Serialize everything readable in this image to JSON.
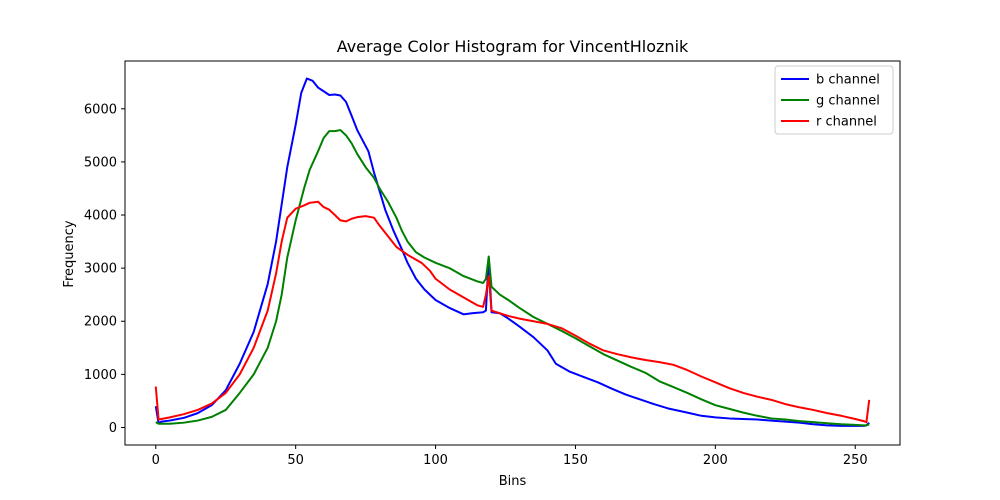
{
  "chart_data": {
    "type": "line",
    "title": "Average Color Histogram for VincentHloznik",
    "xlabel": "Bins",
    "ylabel": "Frequency",
    "xlim": [
      -11,
      266
    ],
    "ylim": [
      -330,
      6900
    ],
    "xticks": [
      0,
      50,
      100,
      150,
      200,
      250
    ],
    "yticks": [
      0,
      1000,
      2000,
      3000,
      4000,
      5000,
      6000
    ],
    "legend_position": "top-right",
    "series": [
      {
        "name": "b channel",
        "color": "#0000ff",
        "points": [
          [
            0,
            400
          ],
          [
            1,
            80
          ],
          [
            2,
            110
          ],
          [
            5,
            130
          ],
          [
            10,
            180
          ],
          [
            15,
            270
          ],
          [
            20,
            420
          ],
          [
            25,
            700
          ],
          [
            30,
            1200
          ],
          [
            35,
            1800
          ],
          [
            40,
            2700
          ],
          [
            43,
            3500
          ],
          [
            45,
            4200
          ],
          [
            47,
            4900
          ],
          [
            50,
            5700
          ],
          [
            52,
            6300
          ],
          [
            54,
            6570
          ],
          [
            56,
            6530
          ],
          [
            58,
            6400
          ],
          [
            60,
            6330
          ],
          [
            62,
            6260
          ],
          [
            64,
            6270
          ],
          [
            66,
            6250
          ],
          [
            68,
            6130
          ],
          [
            70,
            5870
          ],
          [
            72,
            5600
          ],
          [
            74,
            5400
          ],
          [
            76,
            5200
          ],
          [
            78,
            4800
          ],
          [
            80,
            4450
          ],
          [
            82,
            4100
          ],
          [
            85,
            3700
          ],
          [
            88,
            3350
          ],
          [
            90,
            3100
          ],
          [
            93,
            2800
          ],
          [
            96,
            2600
          ],
          [
            100,
            2400
          ],
          [
            105,
            2250
          ],
          [
            110,
            2130
          ],
          [
            113,
            2150
          ],
          [
            117,
            2170
          ],
          [
            118,
            2200
          ],
          [
            119,
            3200
          ],
          [
            120,
            2170
          ],
          [
            123,
            2150
          ],
          [
            126,
            2050
          ],
          [
            130,
            1900
          ],
          [
            135,
            1700
          ],
          [
            140,
            1450
          ],
          [
            143,
            1200
          ],
          [
            148,
            1050
          ],
          [
            153,
            950
          ],
          [
            158,
            850
          ],
          [
            163,
            730
          ],
          [
            168,
            620
          ],
          [
            173,
            530
          ],
          [
            178,
            440
          ],
          [
            183,
            360
          ],
          [
            190,
            280
          ],
          [
            195,
            220
          ],
          [
            200,
            190
          ],
          [
            205,
            170
          ],
          [
            210,
            160
          ],
          [
            215,
            150
          ],
          [
            220,
            130
          ],
          [
            225,
            110
          ],
          [
            230,
            90
          ],
          [
            235,
            60
          ],
          [
            240,
            40
          ],
          [
            245,
            30
          ],
          [
            250,
            30
          ],
          [
            253,
            30
          ],
          [
            254,
            40
          ],
          [
            255,
            90
          ]
        ]
      },
      {
        "name": "g channel",
        "color": "#008000",
        "points": [
          [
            0,
            100
          ],
          [
            1,
            70
          ],
          [
            5,
            70
          ],
          [
            10,
            90
          ],
          [
            15,
            130
          ],
          [
            20,
            200
          ],
          [
            25,
            330
          ],
          [
            30,
            650
          ],
          [
            35,
            1000
          ],
          [
            40,
            1500
          ],
          [
            43,
            2000
          ],
          [
            45,
            2500
          ],
          [
            47,
            3200
          ],
          [
            50,
            3900
          ],
          [
            53,
            4500
          ],
          [
            55,
            4850
          ],
          [
            58,
            5200
          ],
          [
            60,
            5450
          ],
          [
            62,
            5580
          ],
          [
            64,
            5580
          ],
          [
            66,
            5600
          ],
          [
            68,
            5500
          ],
          [
            70,
            5350
          ],
          [
            72,
            5150
          ],
          [
            75,
            4900
          ],
          [
            78,
            4700
          ],
          [
            80,
            4500
          ],
          [
            83,
            4250
          ],
          [
            86,
            3950
          ],
          [
            88,
            3700
          ],
          [
            90,
            3500
          ],
          [
            93,
            3300
          ],
          [
            96,
            3200
          ],
          [
            100,
            3100
          ],
          [
            105,
            3000
          ],
          [
            110,
            2850
          ],
          [
            115,
            2750
          ],
          [
            117,
            2720
          ],
          [
            118,
            2800
          ],
          [
            119,
            3220
          ],
          [
            120,
            2650
          ],
          [
            123,
            2500
          ],
          [
            126,
            2400
          ],
          [
            130,
            2250
          ],
          [
            135,
            2080
          ],
          [
            140,
            1950
          ],
          [
            145,
            1820
          ],
          [
            150,
            1680
          ],
          [
            155,
            1530
          ],
          [
            160,
            1380
          ],
          [
            165,
            1260
          ],
          [
            170,
            1140
          ],
          [
            175,
            1030
          ],
          [
            180,
            870
          ],
          [
            185,
            760
          ],
          [
            190,
            650
          ],
          [
            195,
            530
          ],
          [
            200,
            420
          ],
          [
            205,
            350
          ],
          [
            210,
            280
          ],
          [
            215,
            220
          ],
          [
            220,
            170
          ],
          [
            225,
            150
          ],
          [
            230,
            120
          ],
          [
            235,
            100
          ],
          [
            240,
            80
          ],
          [
            245,
            60
          ],
          [
            250,
            50
          ],
          [
            253,
            40
          ],
          [
            254,
            40
          ],
          [
            255,
            60
          ]
        ]
      },
      {
        "name": "r channel",
        "color": "#ff0000",
        "points": [
          [
            0,
            770
          ],
          [
            1,
            150
          ],
          [
            5,
            190
          ],
          [
            10,
            250
          ],
          [
            15,
            330
          ],
          [
            20,
            450
          ],
          [
            25,
            650
          ],
          [
            30,
            1000
          ],
          [
            35,
            1500
          ],
          [
            40,
            2200
          ],
          [
            43,
            2900
          ],
          [
            45,
            3500
          ],
          [
            47,
            3950
          ],
          [
            50,
            4120
          ],
          [
            53,
            4180
          ],
          [
            55,
            4230
          ],
          [
            58,
            4250
          ],
          [
            60,
            4150
          ],
          [
            62,
            4100
          ],
          [
            64,
            4000
          ],
          [
            66,
            3900
          ],
          [
            68,
            3880
          ],
          [
            70,
            3930
          ],
          [
            72,
            3960
          ],
          [
            75,
            3980
          ],
          [
            78,
            3950
          ],
          [
            80,
            3800
          ],
          [
            83,
            3600
          ],
          [
            86,
            3400
          ],
          [
            90,
            3250
          ],
          [
            95,
            3100
          ],
          [
            98,
            2950
          ],
          [
            100,
            2800
          ],
          [
            105,
            2600
          ],
          [
            110,
            2450
          ],
          [
            115,
            2300
          ],
          [
            117,
            2270
          ],
          [
            118,
            2500
          ],
          [
            119,
            2850
          ],
          [
            120,
            2200
          ],
          [
            123,
            2150
          ],
          [
            126,
            2100
          ],
          [
            130,
            2050
          ],
          [
            135,
            2000
          ],
          [
            140,
            1950
          ],
          [
            145,
            1870
          ],
          [
            150,
            1730
          ],
          [
            155,
            1580
          ],
          [
            160,
            1450
          ],
          [
            165,
            1380
          ],
          [
            170,
            1320
          ],
          [
            175,
            1270
          ],
          [
            180,
            1230
          ],
          [
            185,
            1180
          ],
          [
            190,
            1080
          ],
          [
            195,
            960
          ],
          [
            200,
            850
          ],
          [
            205,
            740
          ],
          [
            210,
            650
          ],
          [
            215,
            580
          ],
          [
            220,
            520
          ],
          [
            225,
            440
          ],
          [
            230,
            380
          ],
          [
            235,
            330
          ],
          [
            240,
            270
          ],
          [
            245,
            220
          ],
          [
            250,
            160
          ],
          [
            253,
            120
          ],
          [
            254,
            100
          ],
          [
            255,
            520
          ]
        ]
      }
    ]
  }
}
